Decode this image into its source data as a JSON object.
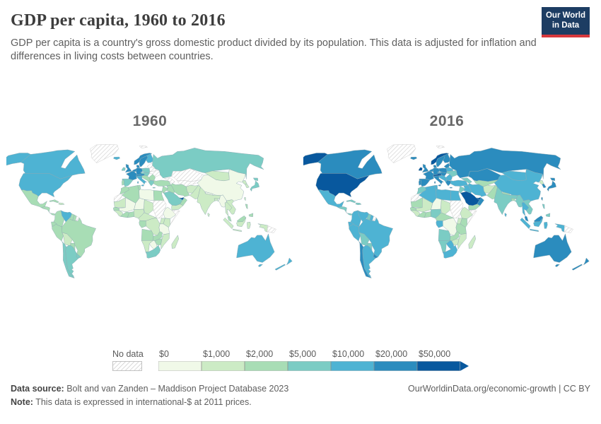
{
  "header": {
    "title": "GDP per capita, 1960 to 2016",
    "subtitle": "GDP per capita is a country's gross domestic product divided by its population. This data is adjusted for inflation and differences in living costs between countries."
  },
  "logo": {
    "line1": "Our World",
    "line2": "in Data",
    "bg": "#1d3d63",
    "accent": "#d7383d"
  },
  "footer": {
    "source_label": "Data source:",
    "source_text": " Bolt and van Zanden – Maddison Project Database 2023",
    "note_label": "Note:",
    "note_text": " This data is expressed in international-$ at 2011 prices.",
    "credit": "OurWorldinData.org/economic-growth | CC BY"
  },
  "chart_data": {
    "type": "choropleth-map",
    "facets": [
      "1960",
      "2016"
    ],
    "unit": "international-$ at 2011 prices",
    "legend": {
      "no_data_label": "No data",
      "tick_labels": [
        "$0",
        "$1,000",
        "$2,000",
        "$5,000",
        "$10,000",
        "$20,000",
        "$50,000"
      ],
      "bin_thresholds": [
        0,
        1000,
        2000,
        5000,
        10000,
        20000,
        50000
      ],
      "bin_colors": [
        "#f0f9e8",
        "#ccebc5",
        "#a8ddb5",
        "#7bccc4",
        "#4eb3d3",
        "#2b8cbe",
        "#08589e"
      ],
      "no_data_fill": "hatched"
    },
    "regions": {
      "usa": {
        "name": "United States",
        "1960": 19100,
        "2016": 53000
      },
      "canada": {
        "name": "Canada",
        "1960": 13900,
        "2016": 43500
      },
      "greenland": {
        "name": "Greenland",
        "1960": null,
        "2016": null
      },
      "mexico": {
        "name": "Mexico",
        "1960": 4800,
        "2016": 16000
      },
      "central_america": {
        "name": "Central America",
        "1960": 2600,
        "2016": 9000
      },
      "cuba": {
        "name": "Cuba",
        "1960": 2500,
        "2016": 8000
      },
      "hispaniola": {
        "name": "Hispaniola",
        "1960": 1800,
        "2016": 7500
      },
      "colombia": {
        "name": "Colombia",
        "1960": 3000,
        "2016": 13000
      },
      "venezuela": {
        "name": "Venezuela",
        "1960": 10500,
        "2016": 10500
      },
      "guyana": {
        "name": "Guyana",
        "1960": 2500,
        "2016": 7500
      },
      "suriname": {
        "name": "Suriname",
        "1960": 3500,
        "2016": 14000
      },
      "french_guiana": {
        "name": "French Guiana",
        "1960": null,
        "2016": null
      },
      "ecuador": {
        "name": "Ecuador",
        "1960": 2800,
        "2016": 10800
      },
      "peru": {
        "name": "Peru",
        "1960": 3300,
        "2016": 12000
      },
      "brazil": {
        "name": "Brazil",
        "1960": 2600,
        "2016": 14500
      },
      "bolivia": {
        "name": "Bolivia",
        "1960": 1700,
        "2016": 6600
      },
      "paraguay": {
        "name": "Paraguay",
        "1960": 2400,
        "2016": 8800
      },
      "uruguay": {
        "name": "Uruguay",
        "1960": 7000,
        "2016": 20500
      },
      "argentina": {
        "name": "Argentina",
        "1960": 7900,
        "2016": 18500
      },
      "chile": {
        "name": "Chile",
        "1960": 5300,
        "2016": 22500
      },
      "iceland": {
        "name": "Iceland",
        "1960": 10500,
        "2016": 46000
      },
      "uk": {
        "name": "United Kingdom",
        "1960": 22000,
        "2016": 39000
      },
      "ireland": {
        "name": "Ireland",
        "1960": 7500,
        "2016": 62000
      },
      "norway": {
        "name": "Norway",
        "1960": 21000,
        "2016": 65000
      },
      "sweden": {
        "name": "Sweden",
        "1960": 23000,
        "2016": 45000
      },
      "finland": {
        "name": "Finland",
        "1960": 15000,
        "2016": 40000
      },
      "denmark": {
        "name": "Denmark",
        "1960": 22000,
        "2016": 46000
      },
      "germany": {
        "name": "Germany",
        "1960": 22000,
        "2016": 46000
      },
      "benelux": {
        "name": "Benelux",
        "1960": 22000,
        "2016": 48000
      },
      "france": {
        "name": "France",
        "1960": 21000,
        "2016": 38000
      },
      "alpine": {
        "name": "Switzerland and Austria",
        "1960": 24000,
        "2016": 57000
      },
      "spain": {
        "name": "Spain",
        "1960": 6500,
        "2016": 32000
      },
      "portugal": {
        "name": "Portugal",
        "1960": 4500,
        "2016": 26000
      },
      "italy": {
        "name": "Italy",
        "1960": 12000,
        "2016": 34000
      },
      "poland": {
        "name": "Poland",
        "1960": 5500,
        "2016": 26000
      },
      "czech_hu": {
        "name": "Czechia, Slovakia, Hungary",
        "1960": 7000,
        "2016": 29000
      },
      "balkans": {
        "name": "Western Balkans",
        "1960": 4500,
        "2016": 11500
      },
      "greece": {
        "name": "Greece",
        "1960": 6200,
        "2016": 24000
      },
      "romania_bulgaria": {
        "name": "Romania and Bulgaria",
        "1960": 4000,
        "2016": 18500
      },
      "baltics": {
        "name": "Baltic states",
        "1960": null,
        "2016": 27000
      },
      "belarus": {
        "name": "Belarus",
        "1960": null,
        "2016": 17000
      },
      "ukraine": {
        "name": "Ukraine",
        "1960": null,
        "2016": 7800
      },
      "caucasus": {
        "name": "Caucasus",
        "1960": null,
        "2016": 9500
      },
      "russia": {
        "name": "Russia",
        "1960": 9500,
        "2016": 24000
      },
      "kazakhstan": {
        "name": "Kazakhstan",
        "1960": null,
        "2016": 23700
      },
      "central_asia": {
        "name": "Central Asia",
        "1960": null,
        "2016": 4800
      },
      "turkey": {
        "name": "Turkey",
        "1960": 3600,
        "2016": 19600
      },
      "levant": {
        "name": "Levant",
        "1960": 4500,
        "2016": 7000
      },
      "iraq": {
        "name": "Iraq",
        "1960": 4500,
        "2016": 11000
      },
      "saudi": {
        "name": "Saudi Arabia",
        "1960": 7000,
        "2016": 50000
      },
      "uae_qatar": {
        "name": "UAE and Qatar",
        "1960": 55000,
        "2016": 67000
      },
      "oman": {
        "name": "Oman",
        "1960": 2500,
        "2016": 38000
      },
      "yemen": {
        "name": "Yemen",
        "1960": 1500,
        "2016": 2500
      },
      "iran": {
        "name": "Iran",
        "1960": 2800,
        "2016": 14000
      },
      "afghanistan": {
        "name": "Afghanistan",
        "1960": 1100,
        "2016": 1800
      },
      "pakistan": {
        "name": "Pakistan",
        "1960": 1100,
        "2016": 4500
      },
      "india": {
        "name": "India",
        "1960": 1000,
        "2016": 6100
      },
      "nepal": {
        "name": "Nepal",
        "1960": 900,
        "2016": 2500
      },
      "bangladesh": {
        "name": "Bangladesh",
        "1960": 1300,
        "2016": 3500
      },
      "sri_lanka": {
        "name": "Sri Lanka",
        "1960": 1800,
        "2016": 11700
      },
      "china": {
        "name": "China",
        "1960": 700,
        "2016": 12300
      },
      "mongolia": {
        "name": "Mongolia",
        "1960": 1500,
        "2016": 11000
      },
      "korea_n": {
        "name": "North Korea",
        "1960": 1200,
        "2016": 1600
      },
      "korea_s": {
        "name": "South Korea",
        "1960": 1200,
        "2016": 36000
      },
      "japan": {
        "name": "Japan",
        "1960": 5500,
        "2016": 38000
      },
      "taiwan": {
        "name": "Taiwan",
        "1960": 1800,
        "2016": 42000
      },
      "myanmar": {
        "name": "Myanmar",
        "1960": 700,
        "2016": 5000
      },
      "thailand": {
        "name": "Thailand",
        "1960": 1100,
        "2016": 15000
      },
      "indochina": {
        "name": "Vietnam, Laos, Cambodia",
        "1960": 1200,
        "2016": 6000
      },
      "malaysia": {
        "name": "Malaysia",
        "1960": 2500,
        "2016": 25000
      },
      "indonesia": {
        "name": "Indonesia",
        "1960": 1100,
        "2016": 10800
      },
      "philippines": {
        "name": "Philippines",
        "1960": 2500,
        "2016": 7300
      },
      "png": {
        "name": "Papua New Guinea",
        "1960": null,
        "2016": null
      },
      "australia": {
        "name": "Australia",
        "1960": 14500,
        "2016": 47000
      },
      "new_zealand": {
        "name": "New Zealand",
        "1960": 14000,
        "2016": 36000
      },
      "morocco": {
        "name": "Morocco",
        "1960": 2500,
        "2016": 7300
      },
      "western_sahara": {
        "name": "Western Sahara",
        "1960": null,
        "2016": null
      },
      "algeria": {
        "name": "Algeria",
        "1960": 3500,
        "2016": 13700
      },
      "tunisia": {
        "name": "Tunisia",
        "1960": 2800,
        "2016": 10800
      },
      "libya": {
        "name": "Libya",
        "1960": 950,
        "2016": 10500
      },
      "egypt": {
        "name": "Egypt",
        "1960": 2200,
        "2016": 10300
      },
      "mauritania": {
        "name": "Mauritania",
        "1960": 1200,
        "2016": 3500
      },
      "senegal": {
        "name": "Senegal",
        "1960": 2200,
        "2016": 2900
      },
      "guinea_group": {
        "name": "Guinea region",
        "1960": 1500,
        "2016": 1800
      },
      "mali": {
        "name": "Mali",
        "1960": 900,
        "2016": 1900
      },
      "ivory_coast": {
        "name": "Côte d'Ivoire",
        "1960": 2200,
        "2016": 3500
      },
      "ghana_tg_bj": {
        "name": "Ghana, Togo, Benin",
        "1960": 2500,
        "2016": 4000
      },
      "niger": {
        "name": "Niger and Burkina Faso",
        "1960": 900,
        "2016": 950
      },
      "nigeria": {
        "name": "Nigeria",
        "1960": 1400,
        "2016": 5200
      },
      "chad": {
        "name": "Chad",
        "1960": 1300,
        "2016": 1900
      },
      "sudan": {
        "name": "Sudan",
        "1960": null,
        "2016": null
      },
      "ethiopia": {
        "name": "Ethiopia",
        "1960": 600,
        "2016": 1500
      },
      "somalia": {
        "name": "Somalia",
        "1960": null,
        "2016": null
      },
      "kenya": {
        "name": "Kenya",
        "1960": 1700,
        "2016": 2700
      },
      "uganda": {
        "name": "Uganda",
        "1960": 1200,
        "2016": 1800
      },
      "tanzania": {
        "name": "Tanzania",
        "1960": 900,
        "2016": 2500
      },
      "drc": {
        "name": "DR Congo",
        "1960": 1500,
        "2016": 800
      },
      "cameroon_car": {
        "name": "Cameroon and CAR",
        "1960": 1800,
        "2016": 2800
      },
      "congo_gabon": {
        "name": "Congo and Gabon",
        "1960": 3000,
        "2016": 10000
      },
      "angola": {
        "name": "Angola",
        "1960": 2200,
        "2016": 6000
      },
      "zambia": {
        "name": "Zambia",
        "1960": 2300,
        "2016": 3500
      },
      "mozambique": {
        "name": "Mozambique and Malawi",
        "1960": 1000,
        "2016": 1100
      },
      "zimbabwe": {
        "name": "Zimbabwe",
        "1960": 2000,
        "2016": 1700
      },
      "botswana": {
        "name": "Botswana",
        "1960": 900,
        "2016": 15000
      },
      "namibia": {
        "name": "Namibia",
        "1960": 1400,
        "2016": 9500
      },
      "south_africa": {
        "name": "South Africa",
        "1960": 5000,
        "2016": 12000
      },
      "madagascar": {
        "name": "Madagascar",
        "1960": 1300,
        "2016": 1400
      },
      "svalbard": {
        "name": "Svalbard",
        "1960": null,
        "2016": null
      }
    }
  }
}
